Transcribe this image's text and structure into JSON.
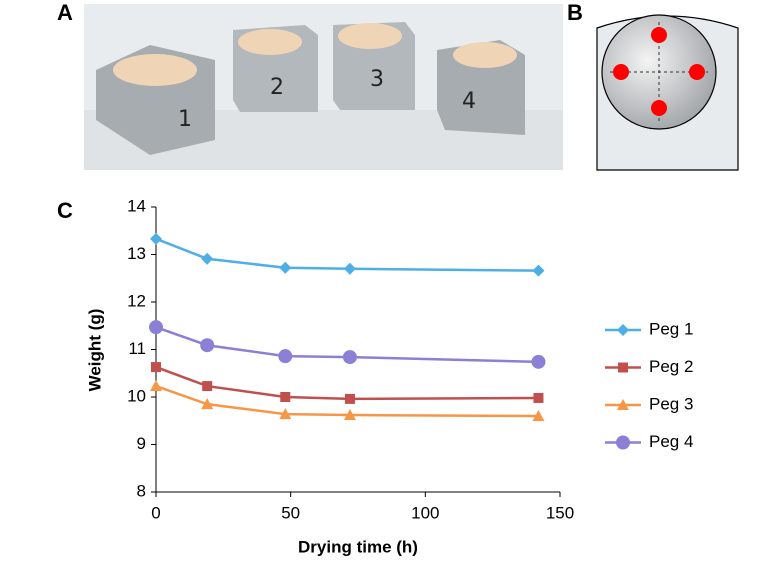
{
  "panel_labels": [
    "A",
    "B",
    "C"
  ],
  "photo": {
    "block_labels": [
      "1",
      "2",
      "3",
      "4"
    ]
  },
  "chart_data": {
    "type": "line",
    "x_label": "Drying time (h)",
    "y_label": "Weight (g)",
    "x": [
      0,
      19,
      48,
      72,
      142
    ],
    "series": [
      {
        "name": "Peg 1",
        "color": "#4eaee6",
        "marker": "diamond",
        "values": [
          13.33,
          12.91,
          12.72,
          12.7,
          12.66
        ]
      },
      {
        "name": "Peg 2",
        "color": "#c0504d",
        "marker": "square",
        "values": [
          10.63,
          10.23,
          10.0,
          9.96,
          9.98
        ]
      },
      {
        "name": "Peg 3",
        "color": "#f79646",
        "marker": "triangle",
        "values": [
          10.23,
          9.85,
          9.64,
          9.62,
          9.6
        ]
      },
      {
        "name": "Peg 4",
        "color": "#8c7fd6",
        "marker": "circle",
        "values": [
          11.47,
          11.09,
          10.86,
          10.84,
          10.74
        ]
      }
    ],
    "xlim": [
      0,
      150
    ],
    "xticks": [
      0,
      50,
      100,
      150
    ],
    "ylim": [
      8,
      14
    ],
    "yticks": [
      8,
      9,
      10,
      11,
      12,
      13,
      14
    ],
    "grid": false,
    "legend": "right"
  }
}
